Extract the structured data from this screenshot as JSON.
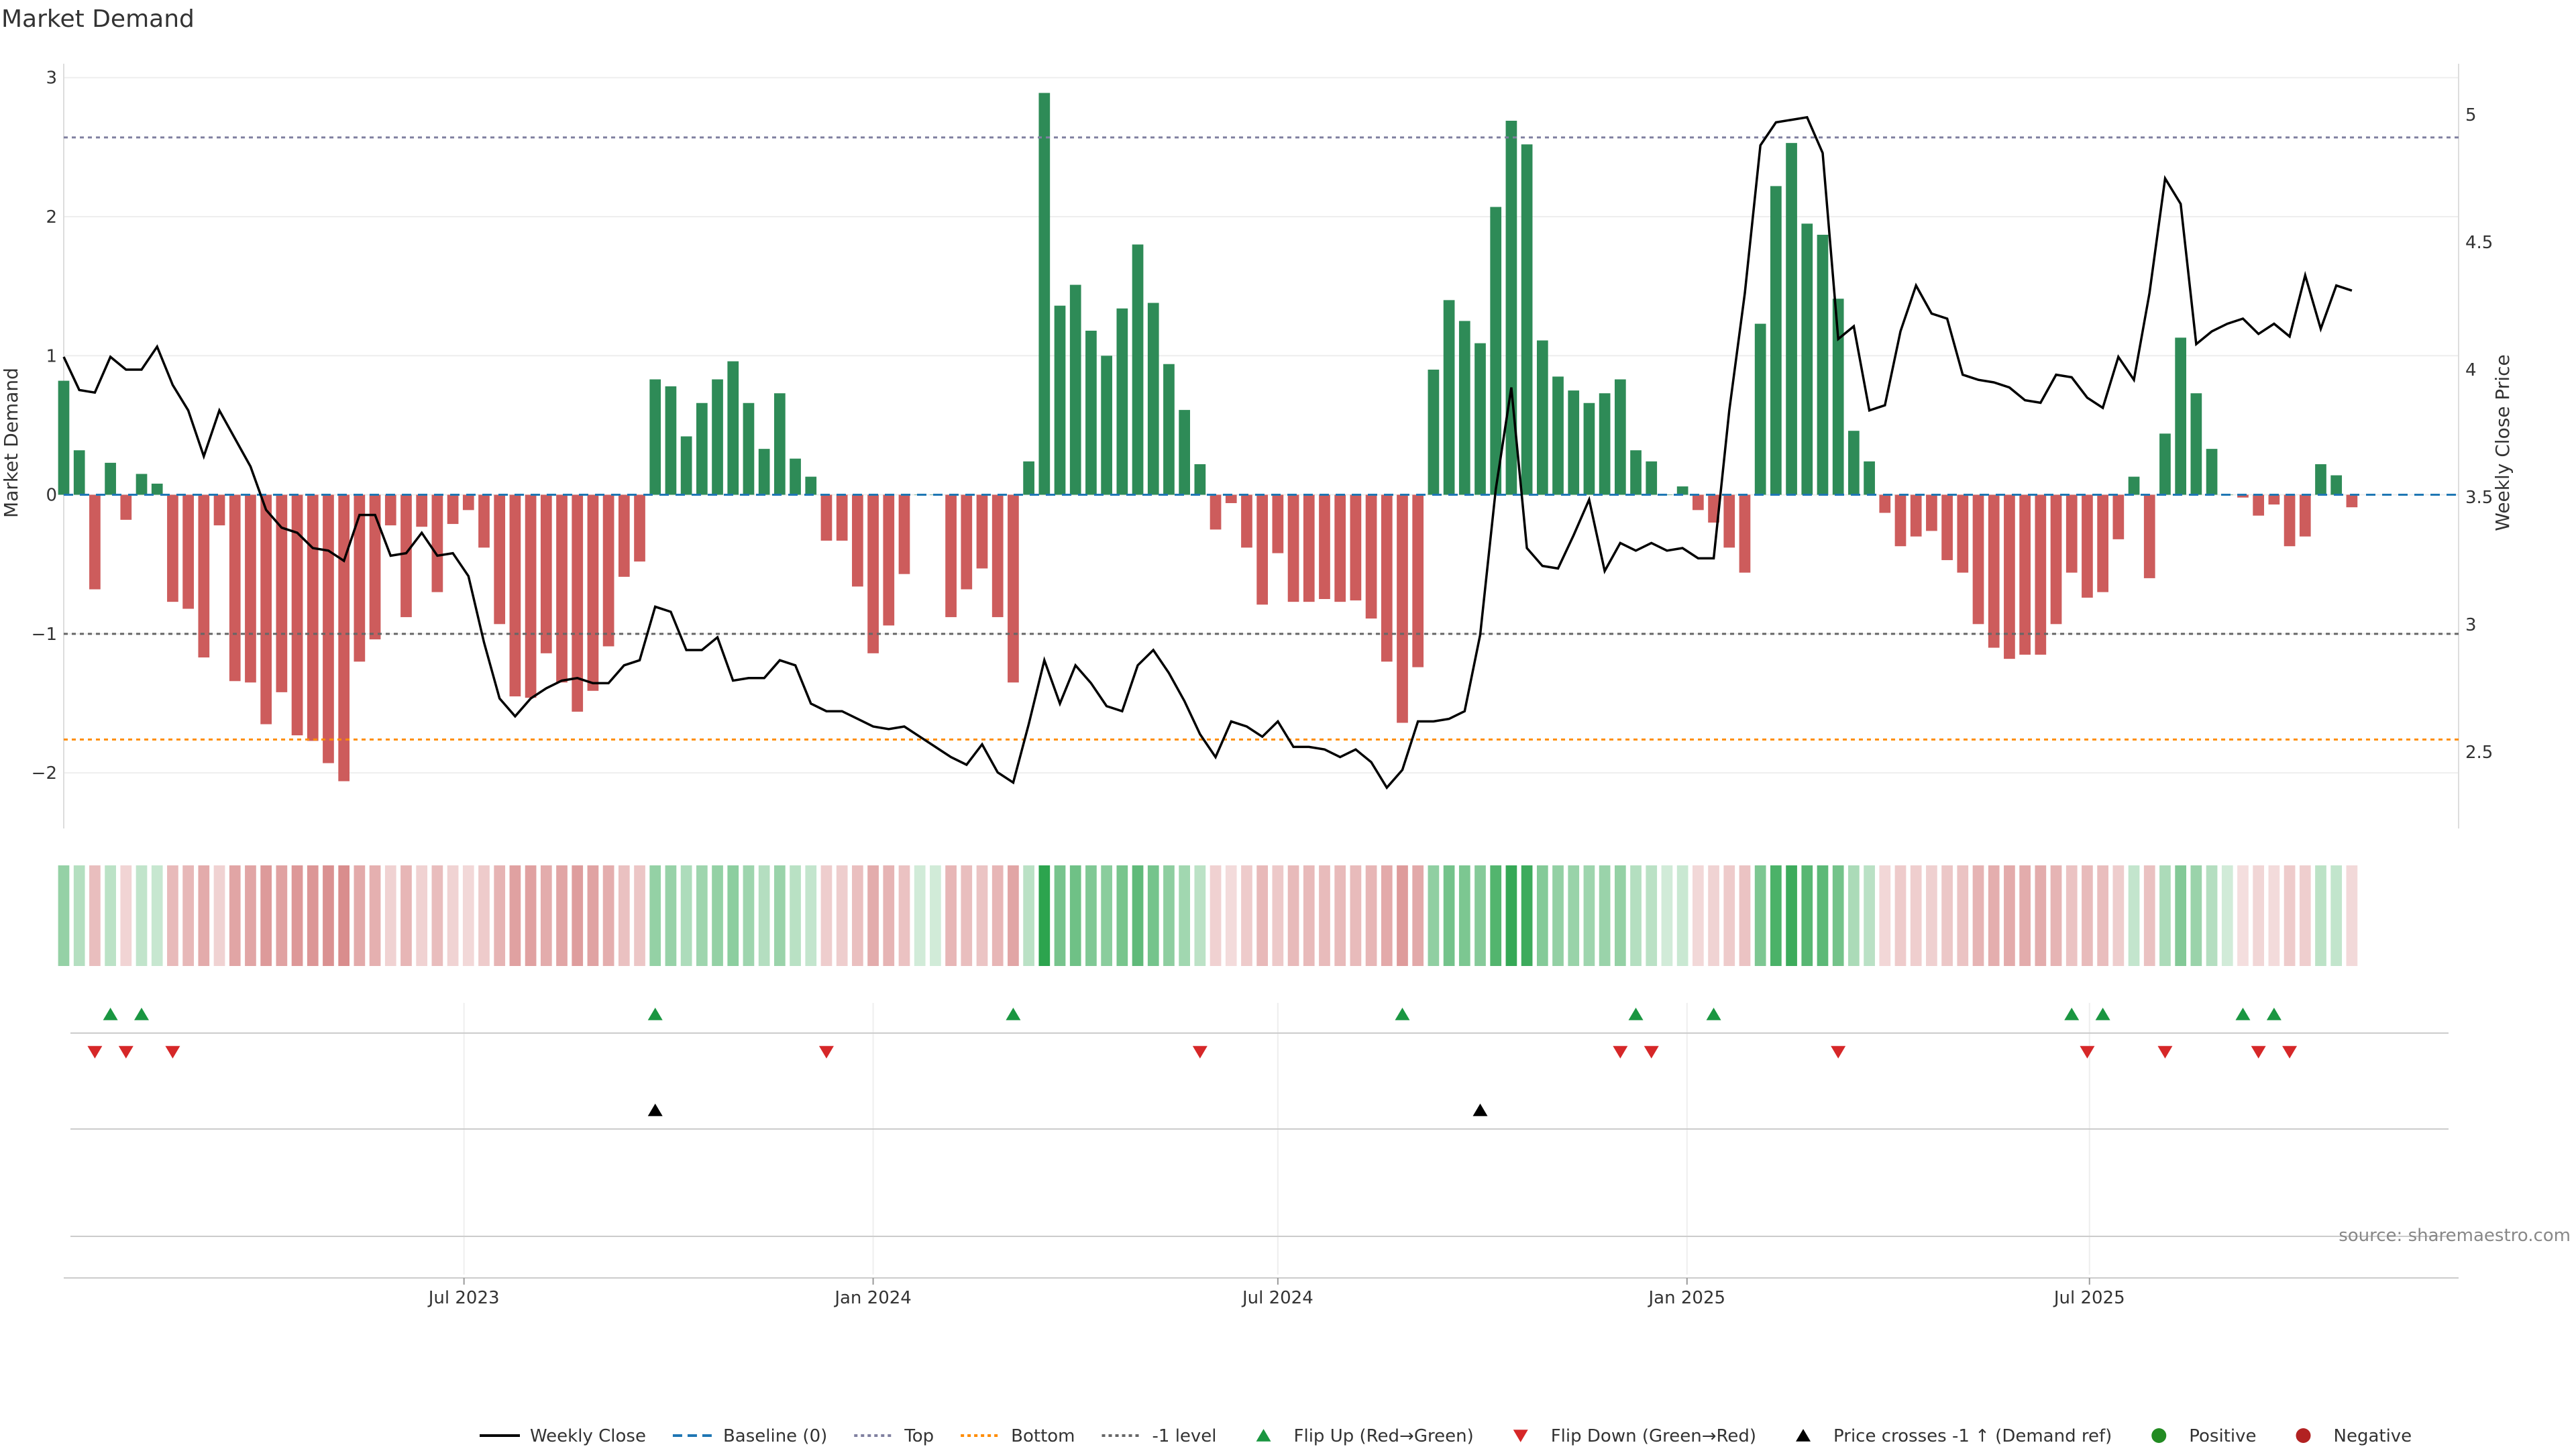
{
  "chart_data": {
    "type": "bar",
    "title": "Market Demand",
    "ylabel": "Market Demand",
    "y2label": "Weekly Close Price",
    "ylim": [
      -2.4,
      3.1
    ],
    "y2lim": [
      2.2,
      5.2
    ],
    "yticks": [
      -2,
      -1,
      0,
      1,
      2,
      3
    ],
    "y2ticks": [
      2.5,
      3,
      3.5,
      4,
      4.5,
      5
    ],
    "xlim": [
      "2023-01-02",
      "2025-12-14"
    ],
    "xticks": [
      {
        "date": "2023-07-01",
        "label": "Jul 2023"
      },
      {
        "date": "2024-01-01",
        "label": "Jan 2024"
      },
      {
        "date": "2024-07-01",
        "label": "Jul 2024"
      },
      {
        "date": "2025-01-01",
        "label": "Jan 2025"
      },
      {
        "date": "2025-07-01",
        "label": "Jul 2025"
      }
    ],
    "start_week": "2023-01-02",
    "demand": [
      0.82,
      0.32,
      -0.68,
      0.23,
      -0.18,
      0.15,
      0.08,
      -0.77,
      -0.82,
      -1.17,
      -0.22,
      -1.34,
      -1.35,
      -1.65,
      -1.42,
      -1.73,
      -1.77,
      -1.93,
      -2.06,
      -1.2,
      -1.04,
      -0.22,
      -0.88,
      -0.23,
      -0.7,
      -0.21,
      -0.11,
      -0.38,
      -0.93,
      -1.45,
      -1.46,
      -1.14,
      -1.35,
      -1.56,
      -1.41,
      -1.09,
      -0.59,
      -0.48,
      0.83,
      0.78,
      0.42,
      0.66,
      0.83,
      0.96,
      0.66,
      0.33,
      0.73,
      0.26,
      0.13,
      -0.33,
      -0.33,
      -0.66,
      -1.14,
      -0.94,
      -0.57,
      0.0,
      0.0,
      -0.88,
      -0.68,
      -0.53,
      -0.88,
      -1.35,
      0.24,
      2.89,
      1.36,
      1.51,
      1.18,
      1.0,
      1.34,
      1.8,
      1.38,
      0.94,
      0.61,
      0.22,
      -0.25,
      -0.06,
      -0.38,
      -0.79,
      -0.42,
      -0.77,
      -0.77,
      -0.75,
      -0.77,
      -0.76,
      -0.89,
      -1.2,
      -1.64,
      -1.24,
      0.9,
      1.4,
      1.25,
      1.09,
      2.07,
      2.69,
      2.52,
      1.11,
      0.85,
      0.75,
      0.66,
      0.73,
      0.83,
      0.32,
      0.24,
      0.0,
      0.06,
      -0.11,
      -0.2,
      -0.38,
      -0.56,
      1.23,
      2.22,
      2.53,
      1.95,
      1.87,
      1.41,
      0.46,
      0.24,
      -0.13,
      -0.37,
      -0.3,
      -0.26,
      -0.47,
      -0.56,
      -0.93,
      -1.1,
      -1.18,
      -1.15,
      -1.15,
      -0.93,
      -0.56,
      -0.74,
      -0.7,
      -0.32,
      0.13,
      -0.6,
      0.44,
      1.13,
      0.73,
      0.33,
      0.0,
      -0.02,
      -0.15,
      -0.07,
      -0.37,
      -0.3,
      0.22,
      0.14,
      -0.09
    ],
    "price": [
      4.05,
      3.92,
      3.91,
      4.05,
      4.0,
      4.0,
      4.09,
      3.94,
      3.84,
      3.66,
      3.84,
      3.73,
      3.62,
      3.45,
      3.38,
      3.36,
      3.3,
      3.29,
      3.25,
      3.43,
      3.43,
      3.27,
      3.28,
      3.36,
      3.27,
      3.28,
      3.19,
      2.93,
      2.71,
      2.64,
      2.71,
      2.75,
      2.78,
      2.79,
      2.77,
      2.77,
      2.84,
      2.86,
      3.07,
      3.05,
      2.9,
      2.9,
      2.95,
      2.78,
      2.79,
      2.79,
      2.86,
      2.84,
      2.69,
      2.66,
      2.66,
      2.63,
      2.6,
      2.59,
      2.6,
      2.56,
      2.52,
      2.48,
      2.45,
      2.53,
      2.42,
      2.38,
      2.61,
      2.86,
      2.69,
      2.84,
      2.77,
      2.68,
      2.66,
      2.84,
      2.9,
      2.81,
      2.7,
      2.57,
      2.48,
      2.62,
      2.6,
      2.56,
      2.62,
      2.52,
      2.52,
      2.51,
      2.48,
      2.51,
      2.46,
      2.36,
      2.43,
      2.62,
      2.62,
      2.63,
      2.66,
      2.96,
      3.53,
      3.93,
      3.3,
      3.23,
      3.22,
      3.35,
      3.49,
      3.21,
      3.32,
      3.29,
      3.32,
      3.29,
      3.3,
      3.26,
      3.26,
      3.84,
      4.3,
      4.88,
      4.97,
      4.98,
      4.99,
      4.85,
      4.12,
      4.17,
      3.84,
      3.86,
      4.15,
      4.33,
      4.22,
      4.2,
      3.98,
      3.96,
      3.95,
      3.93,
      3.88,
      3.87,
      3.98,
      3.97,
      3.89,
      3.85,
      4.05,
      3.96,
      4.3,
      4.75,
      4.65,
      4.1,
      4.15,
      4.18,
      4.2,
      4.14,
      4.18,
      4.13,
      4.37,
      4.16,
      4.33,
      4.31
    ],
    "top_level": 2.57,
    "bottom_level": -1.76,
    "minus_one_level": -1,
    "flip_up_weeks": [
      3,
      5,
      38,
      61,
      86,
      101,
      106,
      129,
      131,
      140,
      142
    ],
    "flip_down_weeks": [
      2,
      4,
      7,
      49,
      73,
      100,
      102,
      114,
      130,
      135,
      141,
      143
    ],
    "price_cross_weeks": [
      38,
      91
    ],
    "colors": {
      "positive": "#2e8b57",
      "negative": "#cd5c5c",
      "price": "#000000",
      "baseline": "#1f77b4",
      "top": "#8080a0",
      "bottom": "#ff8c00",
      "minus_one": "#666666",
      "flip_up": "#1a9641",
      "flip_down": "#d62728",
      "cross": "#000000",
      "positive_dot": "#228b22",
      "negative_dot": "#b22222"
    },
    "legend": [
      {
        "label": "Weekly Close",
        "kind": "line",
        "color": "#000000"
      },
      {
        "label": "Baseline (0)",
        "kind": "dash",
        "color": "#1f77b4"
      },
      {
        "label": "Top",
        "kind": "dot",
        "color": "#8080a0"
      },
      {
        "label": "Bottom",
        "kind": "dot",
        "color": "#ff8c00"
      },
      {
        "label": "-1 level",
        "kind": "dot",
        "color": "#666666"
      },
      {
        "label": "Flip Up (Red→Green)",
        "kind": "tri-up",
        "color": "#1a9641"
      },
      {
        "label": "Flip Down (Green→Red)",
        "kind": "tri-down",
        "color": "#d62728"
      },
      {
        "label": "Price crosses -1 ↑ (Demand ref)",
        "kind": "tri-up",
        "color": "#000000"
      },
      {
        "label": "Positive",
        "kind": "circle",
        "color": "#228b22"
      },
      {
        "label": "Negative",
        "kind": "circle",
        "color": "#b22222"
      }
    ],
    "legend_placement": "bottom-center",
    "source": "source: sharemaestro.com"
  }
}
